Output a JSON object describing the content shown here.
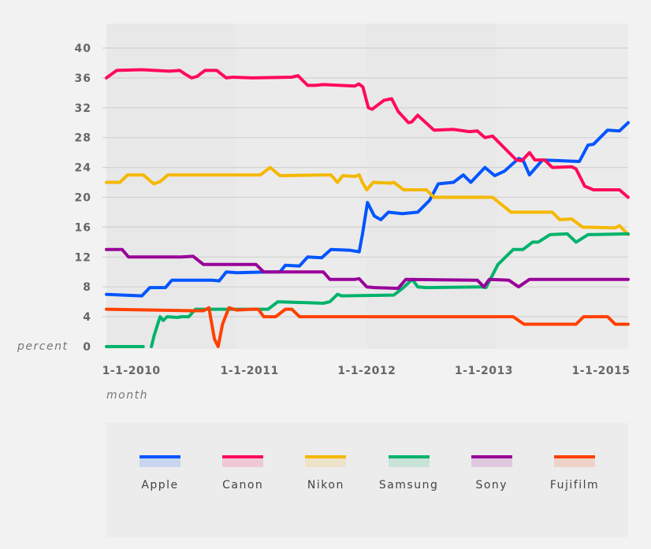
{
  "chart_data": {
    "type": "line",
    "title": "",
    "xlabel": "month",
    "ylabel": "percent",
    "ylim": [
      0,
      40
    ],
    "yticks": [
      0,
      4,
      8,
      12,
      16,
      20,
      24,
      28,
      32,
      36,
      40
    ],
    "x_unit": "months since 1-1-2010",
    "xlim": [
      0,
      48.1
    ],
    "xtick_labels": [
      {
        "label": "1-1-2010",
        "x": 2.3
      },
      {
        "label": "1-1-2011",
        "x": 13.2
      },
      {
        "label": "1-1-2012",
        "x": 24
      },
      {
        "label": "1-1-2013",
        "x": 34.8
      },
      {
        "label": "1-1-2015",
        "x": 45.6
      }
    ],
    "grid": true,
    "legend_position": "bottom",
    "series": [
      {
        "name": "Apple",
        "color": "#0055ff",
        "points": [
          [
            0,
            7
          ],
          [
            3.27,
            6.8
          ],
          [
            4,
            7.9
          ],
          [
            5.45,
            7.9
          ],
          [
            6.04,
            8.9
          ],
          [
            9.8,
            8.9
          ],
          [
            10.4,
            8.8
          ],
          [
            11.05,
            10
          ],
          [
            12,
            9.9
          ],
          [
            14.9,
            10
          ],
          [
            16,
            10
          ],
          [
            16.5,
            10.9
          ],
          [
            17.8,
            10.8
          ],
          [
            18.55,
            12
          ],
          [
            19.85,
            11.9
          ],
          [
            20.7,
            13
          ],
          [
            22.5,
            12.9
          ],
          [
            23.3,
            12.7
          ],
          [
            23.6,
            15
          ],
          [
            24.07,
            19.3
          ],
          [
            24.7,
            17.5
          ],
          [
            25.3,
            17
          ],
          [
            26,
            18
          ],
          [
            27.3,
            17.8
          ],
          [
            28.7,
            18
          ],
          [
            29.8,
            19.6
          ],
          [
            30.6,
            21.8
          ],
          [
            32,
            22
          ],
          [
            32.9,
            23
          ],
          [
            33.6,
            22
          ],
          [
            34.9,
            24
          ],
          [
            35.8,
            22.9
          ],
          [
            36.7,
            23.5
          ],
          [
            38,
            25.2
          ],
          [
            38.4,
            25
          ],
          [
            39,
            23
          ],
          [
            40.2,
            25
          ],
          [
            43.6,
            24.8
          ],
          [
            44.4,
            27
          ],
          [
            44.9,
            27.1
          ],
          [
            46.2,
            29
          ],
          [
            47.3,
            28.9
          ],
          [
            48.1,
            30
          ]
        ]
      },
      {
        "name": "Canon",
        "color": "#ff0a5a",
        "points": [
          [
            0,
            36
          ],
          [
            0.95,
            37
          ],
          [
            3.27,
            37.1
          ],
          [
            5.82,
            36.9
          ],
          [
            6.76,
            37
          ],
          [
            7.27,
            36.5
          ],
          [
            7.85,
            36
          ],
          [
            8.36,
            36.2
          ],
          [
            9.09,
            37
          ],
          [
            10.18,
            37
          ],
          [
            11.05,
            36
          ],
          [
            11.64,
            36.1
          ],
          [
            13.45,
            36
          ],
          [
            17.09,
            36.1
          ],
          [
            17.67,
            36.3
          ],
          [
            18.55,
            35
          ],
          [
            19.27,
            35
          ],
          [
            20,
            35.1
          ],
          [
            22.9,
            34.9
          ],
          [
            23.27,
            35.2
          ],
          [
            23.64,
            34.8
          ],
          [
            24.15,
            32
          ],
          [
            24.5,
            31.8
          ],
          [
            25.6,
            33
          ],
          [
            26.3,
            33.2
          ],
          [
            26.9,
            31.5
          ],
          [
            27.85,
            30
          ],
          [
            28.15,
            30.1
          ],
          [
            28.7,
            31
          ],
          [
            30.2,
            29
          ],
          [
            32,
            29.1
          ],
          [
            33.45,
            28.8
          ],
          [
            34.2,
            28.9
          ],
          [
            34.9,
            28
          ],
          [
            35.6,
            28.2
          ],
          [
            37.8,
            25
          ],
          [
            38.3,
            24.9
          ],
          [
            39,
            26
          ],
          [
            39.5,
            25
          ],
          [
            40.4,
            25
          ],
          [
            41.1,
            24
          ],
          [
            42.9,
            24.1
          ],
          [
            43.3,
            23.8
          ],
          [
            44.1,
            21.5
          ],
          [
            44.9,
            21
          ],
          [
            47.3,
            21
          ],
          [
            48.1,
            20
          ]
        ]
      },
      {
        "name": "Nikon",
        "color": "#f5b800",
        "points": [
          [
            0,
            22
          ],
          [
            1.24,
            22
          ],
          [
            1.96,
            23
          ],
          [
            3.4,
            23
          ],
          [
            4.36,
            21.8
          ],
          [
            4.95,
            22.1
          ],
          [
            5.67,
            23
          ],
          [
            14.2,
            23
          ],
          [
            15.1,
            24
          ],
          [
            16,
            22.9
          ],
          [
            20,
            23
          ],
          [
            20.7,
            23
          ],
          [
            21.3,
            22
          ],
          [
            21.8,
            22.9
          ],
          [
            22.9,
            22.8
          ],
          [
            23.3,
            23
          ],
          [
            23.6,
            22
          ],
          [
            24,
            21
          ],
          [
            24.6,
            22
          ],
          [
            26.2,
            21.9
          ],
          [
            26.5,
            22
          ],
          [
            27.4,
            21
          ],
          [
            29.5,
            21
          ],
          [
            30.2,
            20
          ],
          [
            35.6,
            20
          ],
          [
            37.3,
            18
          ],
          [
            41.1,
            18
          ],
          [
            41.8,
            17
          ],
          [
            42.9,
            17.1
          ],
          [
            43.9,
            16
          ],
          [
            46.9,
            15.9
          ],
          [
            47.3,
            16.2
          ],
          [
            48.1,
            15
          ]
        ]
      },
      {
        "name": "Samsung",
        "color": "#00b36b",
        "points": [
          [
            0,
            0
          ],
          [
            3.4,
            0
          ],
          null,
          [
            4.15,
            0
          ],
          [
            4.4,
            1.5
          ],
          [
            4.95,
            4
          ],
          [
            5.24,
            3.5
          ],
          [
            5.6,
            4
          ],
          [
            6.55,
            3.9
          ],
          [
            6.9,
            4
          ],
          [
            7.6,
            4
          ],
          [
            8.2,
            5
          ],
          [
            12,
            5
          ],
          [
            14.9,
            5
          ],
          [
            15.8,
            6
          ],
          [
            20,
            5.8
          ],
          [
            20.6,
            6
          ],
          [
            21.3,
            7
          ],
          [
            21.7,
            6.8
          ],
          [
            26.5,
            6.9
          ],
          [
            27.3,
            7.8
          ],
          [
            28.2,
            9
          ],
          [
            28.7,
            8
          ],
          [
            29.5,
            7.9
          ],
          [
            34.5,
            8
          ],
          [
            35,
            7.9
          ],
          [
            36.1,
            11
          ],
          [
            37.5,
            13
          ],
          [
            38.4,
            13
          ],
          [
            39.3,
            14
          ],
          [
            39.8,
            14
          ],
          [
            40.9,
            15
          ],
          [
            42.5,
            15.1
          ],
          [
            43.3,
            14
          ],
          [
            44.4,
            15
          ],
          [
            48.1,
            15.1
          ]
        ]
      },
      {
        "name": "Sony",
        "color": "#990099",
        "points": [
          [
            0,
            13
          ],
          [
            1.45,
            13
          ],
          [
            2.04,
            12
          ],
          [
            6.9,
            12
          ],
          [
            8,
            12.1
          ],
          [
            8.95,
            11
          ],
          [
            12.7,
            11
          ],
          [
            13.8,
            11
          ],
          [
            14.5,
            10
          ],
          [
            20,
            10
          ],
          [
            20.6,
            9
          ],
          [
            22.9,
            9
          ],
          [
            23.3,
            9.1
          ],
          [
            24,
            8
          ],
          [
            24.7,
            7.9
          ],
          [
            26.9,
            7.8
          ],
          [
            27.6,
            9
          ],
          [
            34.2,
            8.9
          ],
          [
            34.8,
            8
          ],
          [
            35.3,
            9
          ],
          [
            37.1,
            8.9
          ],
          [
            38,
            8
          ],
          [
            39,
            9
          ],
          [
            48.1,
            9
          ]
        ]
      },
      {
        "name": "Fujifilm",
        "color": "#ff4000",
        "points": [
          [
            0,
            5
          ],
          [
            8,
            4.8
          ],
          [
            8.95,
            4.8
          ],
          [
            9.45,
            5.2
          ],
          [
            9.96,
            1
          ],
          [
            10.3,
            0
          ],
          [
            10.7,
            3
          ],
          [
            11.3,
            5.2
          ],
          [
            12,
            4.9
          ],
          [
            13.45,
            5
          ],
          [
            14,
            5
          ],
          [
            14.5,
            4
          ],
          [
            15.6,
            4
          ],
          [
            16.5,
            5
          ],
          [
            17.1,
            5
          ],
          [
            17.8,
            4
          ],
          [
            37.5,
            4
          ],
          [
            38.5,
            3
          ],
          [
            43.3,
            3
          ],
          [
            44,
            4
          ],
          [
            45.5,
            4
          ],
          [
            46.2,
            4
          ],
          [
            46.9,
            3
          ],
          [
            48.1,
            3
          ]
        ]
      }
    ]
  }
}
